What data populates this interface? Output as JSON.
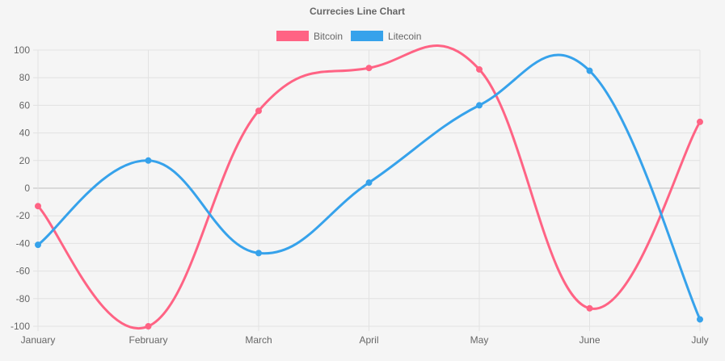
{
  "chart_data": {
    "type": "line",
    "title": "Currecies Line Chart",
    "xlabel": "",
    "ylabel": "",
    "categories": [
      "January",
      "February",
      "March",
      "April",
      "May",
      "June",
      "July"
    ],
    "ylim": [
      -100,
      100
    ],
    "yticks": [
      100,
      80,
      60,
      40,
      20,
      0,
      -20,
      -40,
      -60,
      -80,
      -100
    ],
    "grid": true,
    "legend_position": "top",
    "series": [
      {
        "name": "Bitcoin",
        "color": "#ff6384",
        "values": [
          -13,
          -100,
          56,
          87,
          86,
          -87,
          48
        ]
      },
      {
        "name": "Litecoin",
        "color": "#36a2eb",
        "values": [
          -41,
          20,
          -47,
          4,
          60,
          85,
          -95
        ]
      }
    ]
  }
}
